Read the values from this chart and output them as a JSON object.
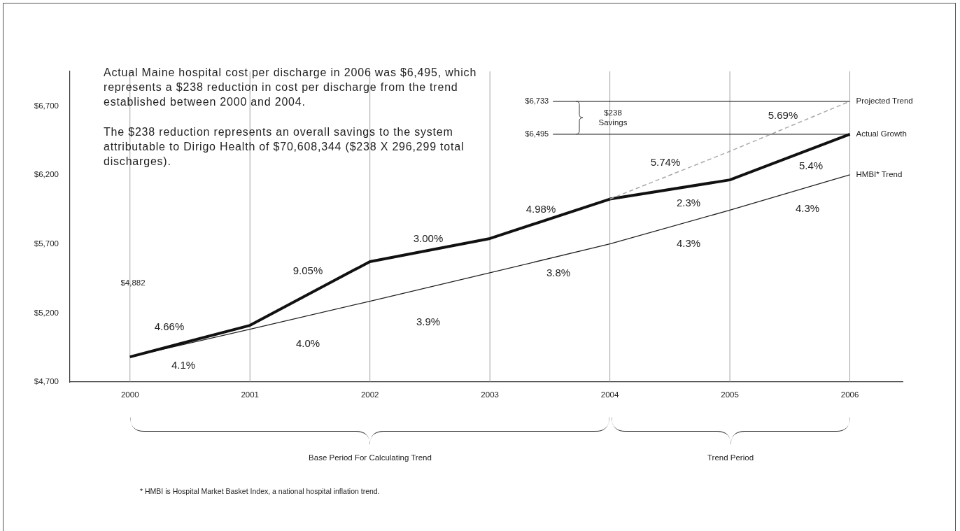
{
  "chart_data": {
    "type": "line",
    "x": [
      2000,
      2001,
      2002,
      2003,
      2004,
      2005,
      2006
    ],
    "xlim": [
      1999.5,
      2006.44
    ],
    "xticks": [
      2000,
      2001,
      2002,
      2003,
      2004,
      2005,
      2006
    ],
    "ylim": [
      4700,
      6950
    ],
    "yticks": [
      {
        "value": 4700,
        "label": "$4,700"
      },
      {
        "value": 5200,
        "label": "$5,200"
      },
      {
        "value": 5700,
        "label": "$5,700"
      },
      {
        "value": 6200,
        "label": "$6,200"
      },
      {
        "value": 6700,
        "label": "$6,700"
      }
    ],
    "series": [
      {
        "name": "Projected Trend",
        "color": "#a8a8a8",
        "line_style": "dashed",
        "x": [
          2004,
          2005,
          2006
        ],
        "values": [
          6025,
          6371,
          6733
        ]
      },
      {
        "name": "Actual Growth",
        "color": "#111111",
        "values": [
          4882,
          5110,
          5572,
          5739,
          6025,
          6164,
          6495
        ]
      },
      {
        "name": "HMBI* Trend",
        "color": "#222222",
        "values": [
          4882,
          5082,
          5285,
          5491,
          5700,
          5945,
          6201
        ]
      }
    ],
    "grid": "x",
    "legend": false,
    "marker": "none",
    "ref_lines": [
      {
        "axis": "y",
        "value": 6733,
        "label": "$6,733"
      },
      {
        "axis": "y",
        "value": 6495,
        "label": "$6,495"
      }
    ],
    "annotations": [
      "Actual Maine hospital cost per discharge in 2006 was $6,495, which represents a $238 reduction in cost per discharge from the trend established between 2000 and 2004.",
      "The $238 reduction represents an overall savings to the system attributable to Dirigo Health of $70,608,344 ($238 X 296,299 total discharges).",
      "$4,882",
      "4.66%",
      "4.1%",
      "9.05%",
      "4.0%",
      "3.00%",
      "3.9%",
      "4.98%",
      "3.8%",
      "5.74%",
      "2.3%",
      "4.3%",
      "5.69%",
      "5.4%",
      "4.3%",
      "$238\nSavings",
      "Base Period For Calculating Trend",
      "Trend Period",
      "* HMBI is Hospital Market Basket Index, a national hospital inflation trend."
    ]
  }
}
